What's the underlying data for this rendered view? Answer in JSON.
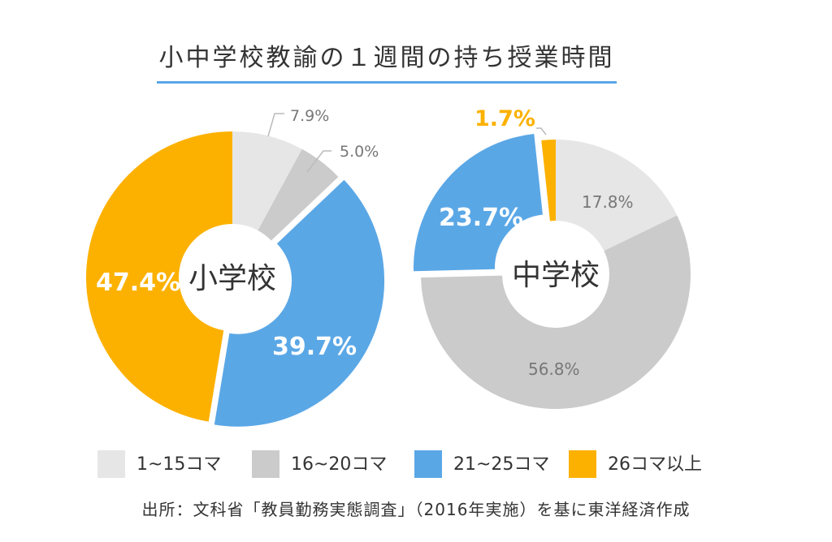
{
  "title": "小中学校教諭の１週間の持ち授業時間",
  "colors": {
    "cat1": "#e6e6e6",
    "cat2": "#cbcbcb",
    "cat3": "#5aa7e6",
    "cat4": "#fcb100",
    "rule": "#5aa7e6",
    "text_dark": "#333333",
    "text_gray": "#777777"
  },
  "legend": [
    {
      "label": "1~15コマ",
      "color": "#e6e6e6"
    },
    {
      "label": "16~20コマ",
      "color": "#cbcbcb"
    },
    {
      "label": "21~25コマ",
      "color": "#5aa7e6"
    },
    {
      "label": "26コマ以上",
      "color": "#fcb100"
    }
  ],
  "source": "出所：文科省「教員勤務実態調査」（2016年実施）を基に東洋経済作成",
  "chart_data": [
    {
      "type": "pie",
      "title": "小学校",
      "categories": [
        "1~15コマ",
        "16~20コマ",
        "21~25コマ",
        "26コマ以上"
      ],
      "values": [
        7.9,
        5.0,
        39.7,
        47.4
      ],
      "labels": [
        "7.9%",
        "5.0%",
        "39.7%",
        "47.4%"
      ],
      "exploded": "21~25コマ"
    },
    {
      "type": "pie",
      "title": "中学校",
      "categories": [
        "1~15コマ",
        "16~20コマ",
        "21~25コマ",
        "26コマ以上"
      ],
      "values": [
        17.8,
        56.8,
        23.7,
        1.7
      ],
      "labels": [
        "17.8%",
        "56.8%",
        "23.7%",
        "1.7%"
      ],
      "exploded": "21~25コマ"
    }
  ]
}
